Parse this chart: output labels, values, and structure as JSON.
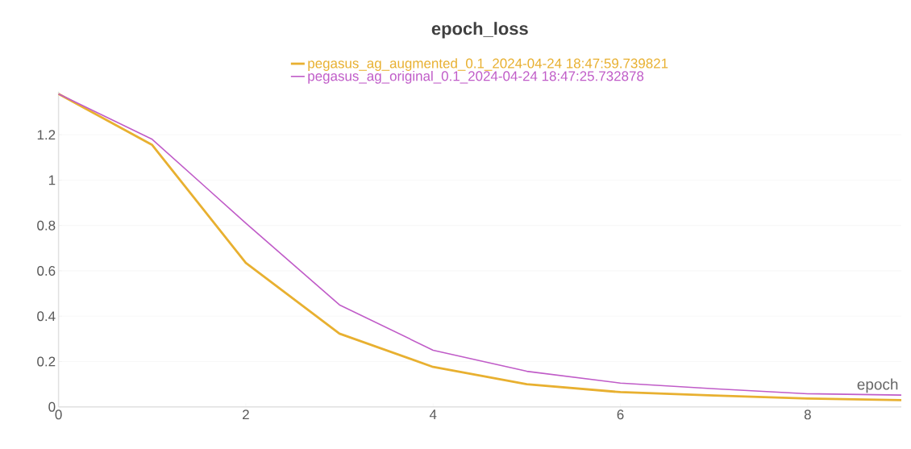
{
  "chart_data": {
    "type": "line",
    "title": "epoch_loss",
    "xlabel": "epoch",
    "x": [
      0,
      1,
      2,
      3,
      4,
      5,
      6,
      7,
      8,
      9
    ],
    "series": [
      {
        "name": "pegasus_ag_augmented_0.1_2024-04-24 18:47:59.739821",
        "color": "#e8b030",
        "values": [
          1.38,
          1.155,
          0.635,
          0.323,
          0.176,
          0.1,
          0.065,
          0.05,
          0.037,
          0.03
        ]
      },
      {
        "name": "pegasus_ag_original_0.1_2024-04-24 18:47:25.732878",
        "color": "#c05cc8",
        "values": [
          1.38,
          1.18,
          0.81,
          0.45,
          0.25,
          0.157,
          0.105,
          0.08,
          0.058,
          0.052
        ]
      }
    ],
    "xlim": [
      0,
      9
    ],
    "ylim": [
      0,
      1.39
    ],
    "xticks": [
      0,
      2,
      4,
      6,
      8
    ],
    "yticks": [
      0,
      0.2,
      0.4,
      0.6,
      0.8,
      1,
      1.2
    ],
    "grid": "y",
    "legend": "top",
    "marker": "none",
    "line_style": "solid"
  }
}
